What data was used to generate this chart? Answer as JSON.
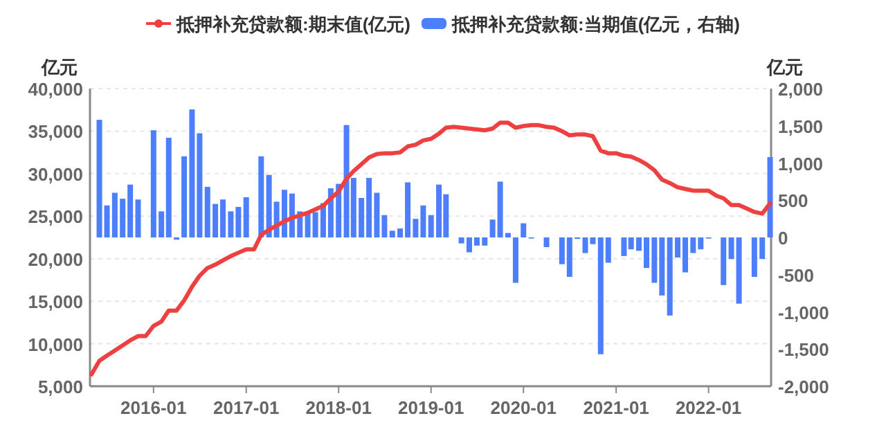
{
  "chart_data": {
    "type": "bar",
    "ylabel": "亿元",
    "y2label": "亿元",
    "legend": "top",
    "grid": "y",
    "x": [
      "2015-05",
      "2015-06",
      "2015-07",
      "2015-08",
      "2015-09",
      "2015-10",
      "2015-11",
      "2015-12",
      "2016-01",
      "2016-02",
      "2016-03",
      "2016-04",
      "2016-05",
      "2016-06",
      "2016-07",
      "2016-08",
      "2016-09",
      "2016-10",
      "2016-11",
      "2016-12",
      "2017-01",
      "2017-02",
      "2017-03",
      "2017-04",
      "2017-05",
      "2017-06",
      "2017-07",
      "2017-08",
      "2017-09",
      "2017-10",
      "2017-11",
      "2017-12",
      "2018-01",
      "2018-02",
      "2018-03",
      "2018-04",
      "2018-05",
      "2018-06",
      "2018-07",
      "2018-08",
      "2018-09",
      "2018-10",
      "2018-11",
      "2018-12",
      "2019-01",
      "2019-02",
      "2019-03",
      "2019-04",
      "2019-05",
      "2019-06",
      "2019-07",
      "2019-08",
      "2019-09",
      "2019-10",
      "2019-11",
      "2019-12",
      "2020-01",
      "2020-02",
      "2020-03",
      "2020-04",
      "2020-05",
      "2020-06",
      "2020-07",
      "2020-08",
      "2020-09",
      "2020-10",
      "2020-11",
      "2020-12",
      "2021-01",
      "2021-02",
      "2021-03",
      "2021-04",
      "2021-05",
      "2021-06",
      "2021-07",
      "2021-08",
      "2021-09",
      "2021-10",
      "2021-11",
      "2021-12",
      "2022-01",
      "2022-02",
      "2022-03",
      "2022-04",
      "2022-05",
      "2022-06",
      "2022-07",
      "2022-08",
      "2022-09"
    ],
    "series": [
      {
        "name": "抵押补充贷款额:期末值(亿元)",
        "type": "line",
        "color": "#ee4040",
        "marker": "none",
        "line_style": "solid",
        "values": [
          6400,
          8000,
          8600,
          9200,
          9800,
          10400,
          10900,
          10900,
          12100,
          12600,
          13900,
          13900,
          15100,
          16700,
          18000,
          18900,
          19300,
          19800,
          20300,
          20700,
          21100,
          21100,
          22800,
          23400,
          23900,
          24400,
          24800,
          25100,
          25400,
          25800,
          26200,
          27100,
          27900,
          29400,
          30300,
          31100,
          31900,
          32300,
          32400,
          32400,
          32500,
          33200,
          33400,
          33900,
          34100,
          34700,
          35400,
          35500,
          35400,
          35300,
          35200,
          35100,
          35300,
          36000,
          36000,
          35400,
          35600,
          35700,
          35700,
          35500,
          35400,
          35000,
          34500,
          34600,
          34600,
          34400,
          32700,
          32400,
          32400,
          32100,
          32000,
          31600,
          31100,
          30400,
          29300,
          28900,
          28400,
          28200,
          28000,
          28000,
          28000,
          27400,
          27100,
          26300,
          26300,
          25900,
          25500,
          25300,
          26500
        ]
      },
      {
        "name": "抵押补充贷款额:当期值(亿元，右轴)",
        "axis": "y2",
        "color": "#4d7efc",
        "values": [
          null,
          1580,
          430,
          600,
          520,
          710,
          510,
          null,
          1440,
          350,
          1340,
          -30,
          1090,
          1720,
          1400,
          680,
          450,
          510,
          350,
          410,
          540,
          null,
          1090,
          840,
          480,
          640,
          590,
          350,
          340,
          340,
          460,
          660,
          720,
          1510,
          800,
          530,
          800,
          600,
          300,
          90,
          120,
          740,
          250,
          430,
          300,
          710,
          580,
          null,
          -80,
          -200,
          -110,
          -110,
          240,
          750,
          60,
          -610,
          190,
          0,
          null,
          -130,
          null,
          -360,
          -530,
          -20,
          -210,
          -90,
          -1570,
          -340,
          null,
          -250,
          -160,
          -180,
          -410,
          -610,
          -780,
          -1050,
          -270,
          -470,
          -210,
          -160,
          -10,
          null,
          -640,
          -290,
          -890,
          null,
          -530,
          -290,
          1080
        ]
      }
    ],
    "xlim": [
      "2015-04-25",
      "2022-09-05"
    ],
    "xticks": [
      "2016-01",
      "2017-01",
      "2018-01",
      "2019-01",
      "2020-01",
      "2021-01",
      "2022-01"
    ],
    "ylim": [
      5000,
      40000
    ],
    "yticks": [
      {
        "value": 5000,
        "label": "5,000"
      },
      {
        "value": 10000,
        "label": "10,000"
      },
      {
        "value": 15000,
        "label": "15,000"
      },
      {
        "value": 20000,
        "label": "20,000"
      },
      {
        "value": 25000,
        "label": "25,000"
      },
      {
        "value": 30000,
        "label": "30,000"
      },
      {
        "value": 35000,
        "label": "35,000"
      },
      {
        "value": 40000,
        "label": "40,000"
      }
    ],
    "y2lim": [
      -2000,
      2000
    ],
    "y2ticks": [
      {
        "value": -2000,
        "label": "-2,000"
      },
      {
        "value": -1500,
        "label": "-1,500"
      },
      {
        "value": -1000,
        "label": "-1,000"
      },
      -500,
      0,
      500,
      {
        "value": 1000,
        "label": "1,000"
      },
      {
        "value": 1500,
        "label": "1,500"
      },
      {
        "value": 2000,
        "label": "2,000"
      }
    ]
  }
}
